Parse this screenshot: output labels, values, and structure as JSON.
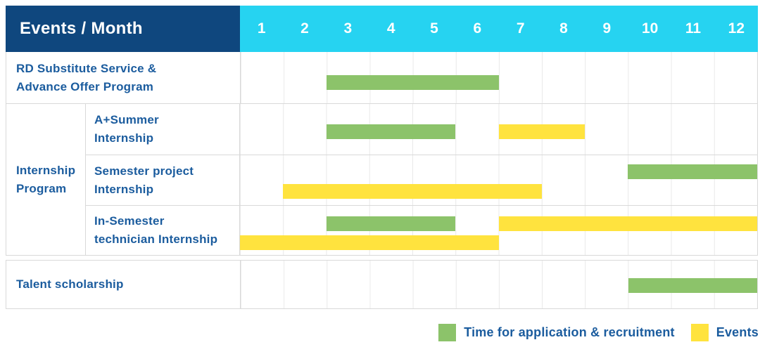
{
  "header": {
    "label": "Events / Month",
    "months": [
      "1",
      "2",
      "3",
      "4",
      "5",
      "6",
      "7",
      "8",
      "9",
      "10",
      "11",
      "12"
    ]
  },
  "rows": {
    "rd": {
      "line1": "RD Substitute Service &",
      "line2": "Advance Offer Program"
    },
    "group": {
      "line1": "Internship",
      "line2": "Program"
    },
    "summer": {
      "line1": "A+Summer",
      "line2": "Internship"
    },
    "semester": {
      "line1": "Semester project",
      "line2": "Internship"
    },
    "technician": {
      "line1": "In-Semester",
      "line2": "technician Internship"
    },
    "talent": {
      "label": "Talent scholarship"
    }
  },
  "legend": {
    "application_label": "Time for application & recruitment",
    "events_label": "Events"
  },
  "colors": {
    "header_navy": "#0F477E",
    "month_cyan": "#26D3F1",
    "bar_green": "#8CC36A",
    "bar_yellow": "#FFE33E",
    "label_blue": "#1B5C9E"
  },
  "chart_data": {
    "type": "gantt",
    "x_unit": "month",
    "x_range": [
      1,
      12
    ],
    "grid": true,
    "legend_position": "bottom-right",
    "legend": [
      {
        "name": "Time for application & recruitment",
        "color": "#8CC36A",
        "kind": "application"
      },
      {
        "name": "Events",
        "color": "#FFE33E",
        "kind": "event"
      }
    ],
    "tasks": [
      {
        "label": "RD Substitute Service & Advance Offer Program",
        "group": null,
        "bars": [
          {
            "type": "application",
            "start_month": 3,
            "end_month": 6,
            "lane": "mid"
          }
        ]
      },
      {
        "label": "A+Summer Internship",
        "group": "Internship Program",
        "bars": [
          {
            "type": "application",
            "start_month": 3,
            "end_month": 5,
            "lane": "mid"
          },
          {
            "type": "event",
            "start_month": 7,
            "end_month": 8,
            "lane": "mid"
          }
        ]
      },
      {
        "label": "Semester project Internship",
        "group": "Internship Program",
        "bars": [
          {
            "type": "application",
            "start_month": 10,
            "end_month": 12,
            "lane": "upper"
          },
          {
            "type": "event",
            "start_month": 2,
            "end_month": 7,
            "lane": "lower"
          }
        ]
      },
      {
        "label": "In-Semester technician Internship",
        "group": "Internship Program",
        "bars": [
          {
            "type": "application",
            "start_month": 3,
            "end_month": 5,
            "lane": "upper"
          },
          {
            "type": "event",
            "start_month": 7,
            "end_month": 12,
            "lane": "upper"
          },
          {
            "type": "event",
            "start_month": 1,
            "end_month": 6,
            "lane": "lower"
          }
        ]
      },
      {
        "label": "Talent scholarship",
        "group": null,
        "bars": [
          {
            "type": "application",
            "start_month": 10,
            "end_month": 12,
            "lane": "mid"
          }
        ]
      }
    ]
  }
}
